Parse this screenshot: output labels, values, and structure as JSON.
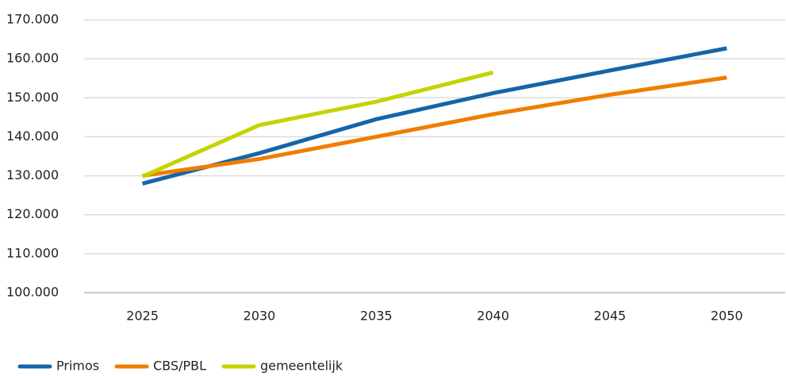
{
  "chart_data": {
    "type": "line",
    "x": [
      2025,
      2030,
      2035,
      2040,
      2045,
      2050
    ],
    "xlim": [
      2022.5,
      2052.5
    ],
    "xticks": [
      2025,
      2030,
      2035,
      2040,
      2045,
      2050
    ],
    "ylim": [
      100000,
      170000
    ],
    "yticks": [
      {
        "value": 100000,
        "label": "100.000"
      },
      {
        "value": 110000,
        "label": "110.000"
      },
      {
        "value": 120000,
        "label": "120.000"
      },
      {
        "value": 130000,
        "label": "130.000"
      },
      {
        "value": 140000,
        "label": "140.000"
      },
      {
        "value": 150000,
        "label": "150.000"
      },
      {
        "value": 160000,
        "label": "160.000"
      },
      {
        "value": 170000,
        "label": "170.000"
      }
    ],
    "grid": true,
    "legend": "bottom-left",
    "series": [
      {
        "name": "Primos",
        "color": "#1565a8",
        "values": [
          128000,
          135800,
          144500,
          151200,
          157000,
          162700
        ]
      },
      {
        "name": "CBS/PBL",
        "color": "#f07d00",
        "values": [
          130000,
          134300,
          140000,
          145800,
          150800,
          155200
        ]
      },
      {
        "name": "gemeentelijk",
        "color": "#c5d300",
        "values": [
          129800,
          143000,
          149000,
          156500,
          null,
          null
        ]
      }
    ]
  }
}
